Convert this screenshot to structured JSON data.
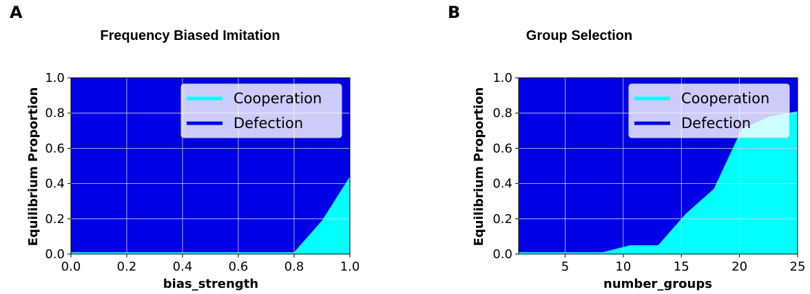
{
  "panels": [
    {
      "letter": "A",
      "title": "Frequency Biased Imitation",
      "ylabel": "Equilibrium Proportion",
      "xlabel": "bias_strength",
      "xticks": [
        "0.0",
        "0.2",
        "0.4",
        "0.6",
        "0.8",
        "1.0"
      ],
      "yticks": [
        "0.0",
        "0.2",
        "0.4",
        "0.6",
        "0.8",
        "1.0"
      ],
      "legend": [
        {
          "label": "Cooperation",
          "color": "#00ffff"
        },
        {
          "label": "Defection",
          "color": "#0000e6"
        }
      ]
    },
    {
      "letter": "B",
      "title": "Group Selection",
      "ylabel": "Equilibrium Proportion",
      "xlabel": "number_groups",
      "xticks": [
        "5",
        "10",
        "15",
        "20",
        "25"
      ],
      "yticks": [
        "0.0",
        "0.2",
        "0.4",
        "0.6",
        "0.8",
        "1.0"
      ],
      "legend": [
        {
          "label": "Cooperation",
          "color": "#00ffff"
        },
        {
          "label": "Defection",
          "color": "#0000e6"
        }
      ]
    }
  ],
  "chart_data": [
    {
      "type": "area",
      "title": "Frequency Biased Imitation",
      "xlabel": "bias_strength",
      "ylabel": "Equilibrium Proportion",
      "xlim": [
        0.0,
        1.0
      ],
      "ylim": [
        0.0,
        1.0
      ],
      "grid": true,
      "legend_position": "top-right",
      "stacked": true,
      "x": [
        0.0,
        0.1,
        0.2,
        0.3,
        0.4,
        0.5,
        0.6,
        0.7,
        0.8,
        0.9,
        1.0
      ],
      "series": [
        {
          "name": "Cooperation",
          "color": "#00ffff",
          "values": [
            0.01,
            0.01,
            0.01,
            0.01,
            0.01,
            0.01,
            0.01,
            0.01,
            0.01,
            0.19,
            0.44
          ]
        },
        {
          "name": "Defection",
          "color": "#0000e6",
          "values": [
            0.99,
            0.99,
            0.99,
            0.99,
            0.99,
            0.99,
            0.99,
            0.99,
            0.99,
            0.81,
            0.56
          ]
        }
      ]
    },
    {
      "type": "area",
      "title": "Group Selection",
      "xlabel": "number_groups",
      "ylabel": "Equilibrium Proportion",
      "xlim": [
        1,
        25
      ],
      "ylim": [
        0.0,
        1.0
      ],
      "grid": true,
      "legend_position": "top-right",
      "stacked": true,
      "x": [
        1,
        3.4,
        5.8,
        8.2,
        10.6,
        13,
        15.4,
        17.8,
        20.2,
        22.6,
        25
      ],
      "series": [
        {
          "name": "Cooperation",
          "color": "#00ffff",
          "values": [
            0.01,
            0.01,
            0.01,
            0.01,
            0.05,
            0.05,
            0.23,
            0.37,
            0.71,
            0.78,
            0.81
          ]
        },
        {
          "name": "Defection",
          "color": "#0000e6",
          "values": [
            0.99,
            0.99,
            0.99,
            0.99,
            0.95,
            0.95,
            0.77,
            0.63,
            0.29,
            0.22,
            0.19
          ]
        }
      ]
    }
  ]
}
